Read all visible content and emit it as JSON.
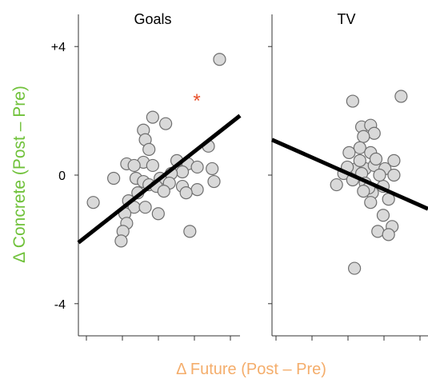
{
  "chart_data": [
    {
      "type": "scatter",
      "title": "Goals",
      "xlabel": "Δ Future (Post – Pre)",
      "ylabel": "Δ Concrete (Post – Pre)",
      "ylim": [
        -5,
        5
      ],
      "yticks": [
        {
          "value": 4,
          "label": "+4"
        },
        {
          "value": 0,
          "label": "0"
        },
        {
          "value": -4,
          "label": "-4"
        }
      ],
      "x_tick_count": 5,
      "annotation": "*",
      "trend_line": {
        "start": [
          -1.0,
          -2.1
        ],
        "end": [
          7.7,
          1.85
        ]
      },
      "points": [
        [
          6.6,
          3.6
        ],
        [
          3.0,
          1.8
        ],
        [
          2.5,
          1.4
        ],
        [
          2.6,
          1.1
        ],
        [
          3.7,
          1.6
        ],
        [
          2.8,
          0.8
        ],
        [
          6.0,
          0.9
        ],
        [
          1.6,
          0.35
        ],
        [
          2.5,
          0.4
        ],
        [
          4.3,
          0.45
        ],
        [
          4.9,
          0.35
        ],
        [
          2.0,
          0.3
        ],
        [
          3.0,
          0.3
        ],
        [
          5.4,
          0.25
        ],
        [
          6.2,
          0.2
        ],
        [
          4.6,
          0.1
        ],
        [
          0.9,
          -0.1
        ],
        [
          2.1,
          -0.1
        ],
        [
          2.5,
          -0.2
        ],
        [
          3.4,
          -0.1
        ],
        [
          4.0,
          0.05
        ],
        [
          6.3,
          -0.2
        ],
        [
          2.8,
          -0.3
        ],
        [
          3.2,
          -0.35
        ],
        [
          3.9,
          -0.25
        ],
        [
          4.6,
          -0.35
        ],
        [
          5.4,
          -0.45
        ],
        [
          2.2,
          -0.55
        ],
        [
          3.6,
          -0.5
        ],
        [
          1.7,
          -0.8
        ],
        [
          4.8,
          -0.55
        ],
        [
          -0.2,
          -0.85
        ],
        [
          2.0,
          -1.0
        ],
        [
          2.6,
          -1.0
        ],
        [
          3.3,
          -1.2
        ],
        [
          1.5,
          -1.2
        ],
        [
          1.6,
          -1.5
        ],
        [
          1.4,
          -1.75
        ],
        [
          5.0,
          -1.75
        ],
        [
          1.3,
          -2.05
        ]
      ]
    },
    {
      "type": "scatter",
      "title": "TV",
      "ylim": [
        -5,
        5
      ],
      "x_tick_count": 5,
      "trend_line": {
        "start": [
          -1.0,
          1.1
        ],
        "end": [
          7.7,
          -1.05
        ]
      },
      "points": [
        [
          3.5,
          2.3
        ],
        [
          6.2,
          2.45
        ],
        [
          4.0,
          1.5
        ],
        [
          4.5,
          1.55
        ],
        [
          4.7,
          1.3
        ],
        [
          4.1,
          1.2
        ],
        [
          3.9,
          0.85
        ],
        [
          4.5,
          0.7
        ],
        [
          3.3,
          0.7
        ],
        [
          5.8,
          0.45
        ],
        [
          3.0,
          0.05
        ],
        [
          3.7,
          0.2
        ],
        [
          4.2,
          0.2
        ],
        [
          4.7,
          0.3
        ],
        [
          5.3,
          0.2
        ],
        [
          4.0,
          0.05
        ],
        [
          3.5,
          -0.15
        ],
        [
          4.2,
          -0.25
        ],
        [
          5.2,
          -0.35
        ],
        [
          5.8,
          0.0
        ],
        [
          2.6,
          -0.3
        ],
        [
          4.6,
          -0.55
        ],
        [
          5.5,
          -0.75
        ],
        [
          4.5,
          -0.85
        ],
        [
          5.2,
          -1.25
        ],
        [
          4.9,
          -1.75
        ],
        [
          5.7,
          -1.6
        ],
        [
          5.5,
          -1.85
        ],
        [
          3.6,
          -2.9
        ],
        [
          3.9,
          0.45
        ],
        [
          4.8,
          0.5
        ],
        [
          3.2,
          0.25
        ],
        [
          5.0,
          0.0
        ],
        [
          4.4,
          -0.4
        ],
        [
          4.1,
          -0.5
        ]
      ]
    }
  ]
}
